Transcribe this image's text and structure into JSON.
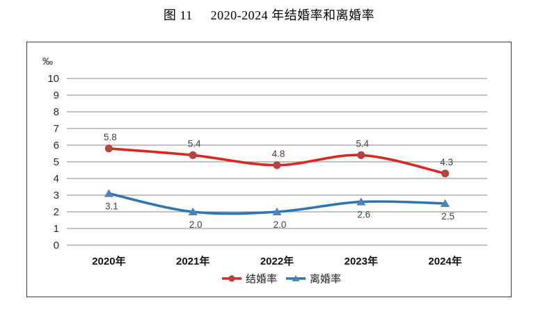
{
  "page": {
    "title_figure": "图 11",
    "title_text": "2020-2024 年结婚率和离婚率"
  },
  "chart_data": {
    "type": "line",
    "title": "图 11 2020-2024 年结婚率和离婚率",
    "unit_label": "‰",
    "categories": [
      "2020年",
      "2021年",
      "2022年",
      "2023年",
      "2024年"
    ],
    "series": [
      {
        "name": "结婚率",
        "values": [
          5.8,
          5.4,
          4.8,
          5.4,
          4.3
        ],
        "labels": [
          "5.8",
          "5.4",
          "4.8",
          "5.4",
          "4.3"
        ],
        "line_color": "#d8281f",
        "marker_color": "#b2453f",
        "marker": "circle",
        "label_position": "above"
      },
      {
        "name": "离婚率",
        "values": [
          3.1,
          2.0,
          2.0,
          2.6,
          2.5
        ],
        "labels": [
          "3.1",
          "2.0",
          "2.0",
          "2.6",
          "2.5"
        ],
        "line_color": "#2e75b6",
        "marker_color": "#4f81bd",
        "marker": "triangle",
        "label_position": "below"
      }
    ],
    "ylim": [
      0,
      10
    ],
    "yticks": [
      "0",
      "1",
      "2",
      "3",
      "4",
      "5",
      "6",
      "7",
      "8",
      "9",
      "10"
    ],
    "grid": true,
    "smooth": true,
    "legend_position": "bottom",
    "colors": {
      "gridline": "#9a9a9a",
      "axis_text": "#262626",
      "data_label_text": "#3f3f3f",
      "frame_border": "#3c3c3c"
    }
  }
}
